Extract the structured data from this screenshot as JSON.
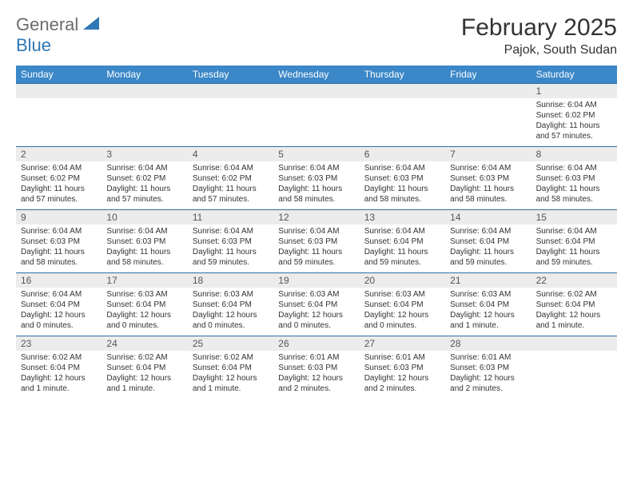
{
  "logo": {
    "line1": "General",
    "line2": "Blue"
  },
  "title": "February 2025",
  "location": "Pajok, South Sudan",
  "colors": {
    "header_bg": "#3b87c8",
    "header_fg": "#ffffff",
    "week_border": "#2f6fa6",
    "daynum_bg": "#ececec",
    "text": "#333333",
    "logo_gray": "#6b6b6b",
    "logo_blue": "#2f77b5",
    "page_bg": "#ffffff"
  },
  "dow": [
    "Sunday",
    "Monday",
    "Tuesday",
    "Wednesday",
    "Thursday",
    "Friday",
    "Saturday"
  ],
  "weeks": [
    [
      null,
      null,
      null,
      null,
      null,
      null,
      {
        "n": "1",
        "sr": "6:04 AM",
        "ss": "6:02 PM",
        "dl": "11 hours and 57 minutes."
      }
    ],
    [
      {
        "n": "2",
        "sr": "6:04 AM",
        "ss": "6:02 PM",
        "dl": "11 hours and 57 minutes."
      },
      {
        "n": "3",
        "sr": "6:04 AM",
        "ss": "6:02 PM",
        "dl": "11 hours and 57 minutes."
      },
      {
        "n": "4",
        "sr": "6:04 AM",
        "ss": "6:02 PM",
        "dl": "11 hours and 57 minutes."
      },
      {
        "n": "5",
        "sr": "6:04 AM",
        "ss": "6:03 PM",
        "dl": "11 hours and 58 minutes."
      },
      {
        "n": "6",
        "sr": "6:04 AM",
        "ss": "6:03 PM",
        "dl": "11 hours and 58 minutes."
      },
      {
        "n": "7",
        "sr": "6:04 AM",
        "ss": "6:03 PM",
        "dl": "11 hours and 58 minutes."
      },
      {
        "n": "8",
        "sr": "6:04 AM",
        "ss": "6:03 PM",
        "dl": "11 hours and 58 minutes."
      }
    ],
    [
      {
        "n": "9",
        "sr": "6:04 AM",
        "ss": "6:03 PM",
        "dl": "11 hours and 58 minutes."
      },
      {
        "n": "10",
        "sr": "6:04 AM",
        "ss": "6:03 PM",
        "dl": "11 hours and 58 minutes."
      },
      {
        "n": "11",
        "sr": "6:04 AM",
        "ss": "6:03 PM",
        "dl": "11 hours and 59 minutes."
      },
      {
        "n": "12",
        "sr": "6:04 AM",
        "ss": "6:03 PM",
        "dl": "11 hours and 59 minutes."
      },
      {
        "n": "13",
        "sr": "6:04 AM",
        "ss": "6:04 PM",
        "dl": "11 hours and 59 minutes."
      },
      {
        "n": "14",
        "sr": "6:04 AM",
        "ss": "6:04 PM",
        "dl": "11 hours and 59 minutes."
      },
      {
        "n": "15",
        "sr": "6:04 AM",
        "ss": "6:04 PM",
        "dl": "11 hours and 59 minutes."
      }
    ],
    [
      {
        "n": "16",
        "sr": "6:04 AM",
        "ss": "6:04 PM",
        "dl": "12 hours and 0 minutes."
      },
      {
        "n": "17",
        "sr": "6:03 AM",
        "ss": "6:04 PM",
        "dl": "12 hours and 0 minutes."
      },
      {
        "n": "18",
        "sr": "6:03 AM",
        "ss": "6:04 PM",
        "dl": "12 hours and 0 minutes."
      },
      {
        "n": "19",
        "sr": "6:03 AM",
        "ss": "6:04 PM",
        "dl": "12 hours and 0 minutes."
      },
      {
        "n": "20",
        "sr": "6:03 AM",
        "ss": "6:04 PM",
        "dl": "12 hours and 0 minutes."
      },
      {
        "n": "21",
        "sr": "6:03 AM",
        "ss": "6:04 PM",
        "dl": "12 hours and 1 minute."
      },
      {
        "n": "22",
        "sr": "6:02 AM",
        "ss": "6:04 PM",
        "dl": "12 hours and 1 minute."
      }
    ],
    [
      {
        "n": "23",
        "sr": "6:02 AM",
        "ss": "6:04 PM",
        "dl": "12 hours and 1 minute."
      },
      {
        "n": "24",
        "sr": "6:02 AM",
        "ss": "6:04 PM",
        "dl": "12 hours and 1 minute."
      },
      {
        "n": "25",
        "sr": "6:02 AM",
        "ss": "6:04 PM",
        "dl": "12 hours and 1 minute."
      },
      {
        "n": "26",
        "sr": "6:01 AM",
        "ss": "6:03 PM",
        "dl": "12 hours and 2 minutes."
      },
      {
        "n": "27",
        "sr": "6:01 AM",
        "ss": "6:03 PM",
        "dl": "12 hours and 2 minutes."
      },
      {
        "n": "28",
        "sr": "6:01 AM",
        "ss": "6:03 PM",
        "dl": "12 hours and 2 minutes."
      },
      null
    ]
  ],
  "labels": {
    "sunrise": "Sunrise:",
    "sunset": "Sunset:",
    "daylight": "Daylight:"
  }
}
